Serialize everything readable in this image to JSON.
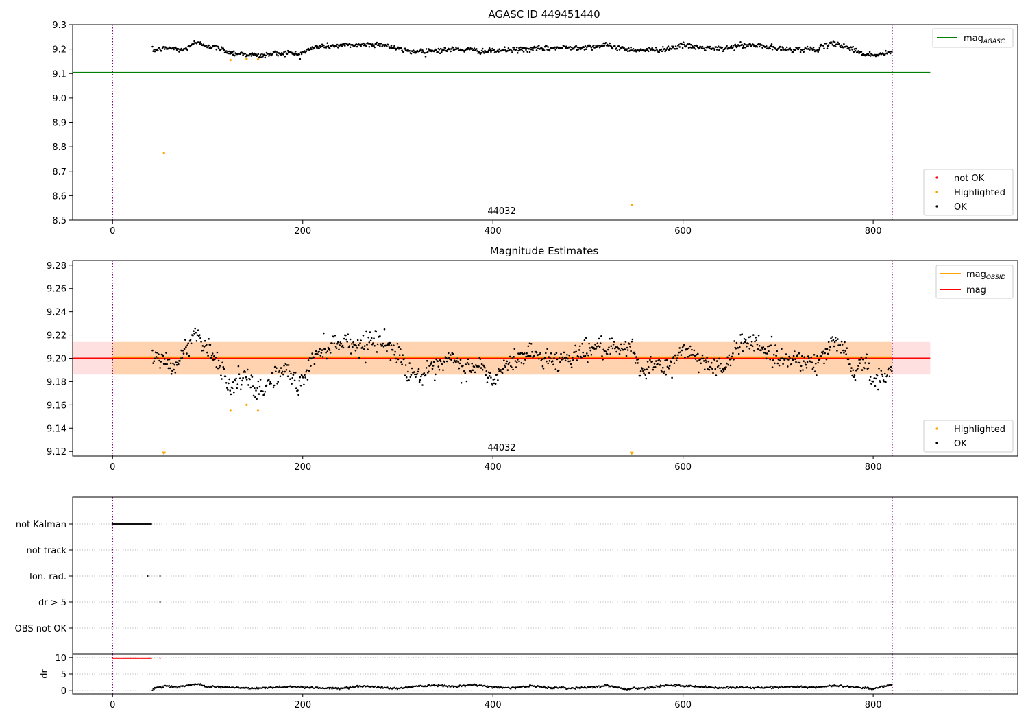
{
  "chart_data": [
    {
      "id": "agasc",
      "type": "scatter",
      "title": "AGASC ID 449451440",
      "xlim": [
        -42,
        952
      ],
      "ylim": [
        8.5,
        9.3
      ],
      "xticks": [
        0,
        200,
        400,
        600,
        800
      ],
      "yticks": [
        8.5,
        8.6,
        8.7,
        8.8,
        8.9,
        9.0,
        9.1,
        9.2,
        9.3
      ],
      "yticklabels": [
        "8.5",
        "8.6",
        "8.7",
        "8.8",
        "8.9",
        "9.0",
        "9.1",
        "9.2",
        "9.3"
      ],
      "obsid_label": {
        "text": "44032",
        "x": 410
      },
      "obs_boundaries": [
        0,
        820
      ],
      "mag_agasc": {
        "value": 9.104,
        "x_range": [
          -42,
          860
        ],
        "color": "#008000"
      },
      "ok_series": {
        "name": "OK",
        "color": "#000000",
        "x_range": [
          42,
          820
        ],
        "anchors": [
          [
            42,
            9.195
          ],
          [
            60,
            9.205
          ],
          [
            75,
            9.195
          ],
          [
            85,
            9.225
          ],
          [
            95,
            9.22
          ],
          [
            110,
            9.205
          ],
          [
            125,
            9.185
          ],
          [
            140,
            9.18
          ],
          [
            155,
            9.172
          ],
          [
            170,
            9.182
          ],
          [
            185,
            9.185
          ],
          [
            195,
            9.178
          ],
          [
            205,
            9.195
          ],
          [
            215,
            9.21
          ],
          [
            240,
            9.215
          ],
          [
            260,
            9.218
          ],
          [
            285,
            9.22
          ],
          [
            300,
            9.2
          ],
          [
            315,
            9.19
          ],
          [
            340,
            9.195
          ],
          [
            360,
            9.2
          ],
          [
            380,
            9.195
          ],
          [
            395,
            9.19
          ],
          [
            410,
            9.195
          ],
          [
            440,
            9.2
          ],
          [
            470,
            9.205
          ],
          [
            500,
            9.21
          ],
          [
            520,
            9.215
          ],
          [
            540,
            9.2
          ],
          [
            560,
            9.195
          ],
          [
            580,
            9.2
          ],
          [
            600,
            9.215
          ],
          [
            620,
            9.205
          ],
          [
            640,
            9.2
          ],
          [
            660,
            9.215
          ],
          [
            680,
            9.215
          ],
          [
            700,
            9.2
          ],
          [
            720,
            9.2
          ],
          [
            740,
            9.2
          ],
          [
            760,
            9.225
          ],
          [
            775,
            9.205
          ],
          [
            790,
            9.18
          ],
          [
            805,
            9.175
          ],
          [
            820,
            9.19
          ]
        ],
        "scatter": 0.01
      },
      "highlighted": {
        "name": "Highlighted",
        "color": "#ffa500",
        "points": [
          [
            54,
            8.775
          ],
          [
            124,
            9.155
          ],
          [
            141,
            9.16
          ],
          [
            153,
            9.158
          ],
          [
            546,
            8.562
          ]
        ]
      },
      "not_ok": {
        "name": "not OK",
        "color": "#ff0000",
        "points": []
      },
      "legend_upper": [
        "mag_AGASC"
      ],
      "legend_lower": [
        "not OK",
        "Highlighted",
        "OK"
      ]
    },
    {
      "id": "estimates",
      "type": "scatter",
      "title": "Magnitude Estimates",
      "xlim": [
        -42,
        952
      ],
      "ylim": [
        9.116,
        9.284
      ],
      "xticks": [
        0,
        200,
        400,
        600,
        800
      ],
      "yticks": [
        9.12,
        9.14,
        9.16,
        9.18,
        9.2,
        9.22,
        9.24,
        9.26,
        9.28
      ],
      "yticklabels": [
        "9.12",
        "9.14",
        "9.16",
        "9.18",
        "9.20",
        "9.22",
        "9.24",
        "9.26",
        "9.28"
      ],
      "obsid_label": {
        "text": "44032",
        "x": 410
      },
      "obs_boundaries": [
        0,
        820
      ],
      "mag": {
        "value": 9.2,
        "band": [
          9.186,
          9.214
        ],
        "x_range": [
          -42,
          860
        ],
        "color": "#ff0000"
      },
      "mag_obsid": {
        "value": 9.201,
        "band": [
          9.186,
          9.214
        ],
        "x_range": [
          0,
          820
        ],
        "color": "#ffa500"
      },
      "ok_series": {
        "name": "OK",
        "color": "#000000",
        "x_range": [
          42,
          820
        ],
        "anchors": [
          [
            42,
            9.198
          ],
          [
            55,
            9.2
          ],
          [
            65,
            9.19
          ],
          [
            75,
            9.205
          ],
          [
            85,
            9.222
          ],
          [
            95,
            9.215
          ],
          [
            105,
            9.205
          ],
          [
            115,
            9.19
          ],
          [
            125,
            9.175
          ],
          [
            140,
            9.185
          ],
          [
            150,
            9.17
          ],
          [
            160,
            9.175
          ],
          [
            170,
            9.185
          ],
          [
            185,
            9.19
          ],
          [
            195,
            9.175
          ],
          [
            205,
            9.19
          ],
          [
            215,
            9.205
          ],
          [
            230,
            9.212
          ],
          [
            245,
            9.215
          ],
          [
            260,
            9.21
          ],
          [
            275,
            9.218
          ],
          [
            290,
            9.21
          ],
          [
            300,
            9.205
          ],
          [
            310,
            9.19
          ],
          [
            325,
            9.185
          ],
          [
            340,
            9.19
          ],
          [
            355,
            9.2
          ],
          [
            370,
            9.19
          ],
          [
            385,
            9.195
          ],
          [
            400,
            9.18
          ],
          [
            410,
            9.19
          ],
          [
            425,
            9.2
          ],
          [
            440,
            9.205
          ],
          [
            455,
            9.2
          ],
          [
            470,
            9.198
          ],
          [
            490,
            9.205
          ],
          [
            510,
            9.21
          ],
          [
            530,
            9.205
          ],
          [
            545,
            9.21
          ],
          [
            555,
            9.19
          ],
          [
            570,
            9.195
          ],
          [
            585,
            9.19
          ],
          [
            600,
            9.21
          ],
          [
            615,
            9.2
          ],
          [
            630,
            9.195
          ],
          [
            645,
            9.19
          ],
          [
            660,
            9.215
          ],
          [
            675,
            9.215
          ],
          [
            690,
            9.205
          ],
          [
            700,
            9.2
          ],
          [
            720,
            9.2
          ],
          [
            740,
            9.195
          ],
          [
            760,
            9.215
          ],
          [
            770,
            9.21
          ],
          [
            780,
            9.185
          ],
          [
            790,
            9.2
          ],
          [
            800,
            9.18
          ],
          [
            810,
            9.182
          ],
          [
            820,
            9.19
          ]
        ],
        "scatter": 0.008
      },
      "highlighted": {
        "name": "Highlighted",
        "color": "#ffa500",
        "points": [
          [
            124,
            9.155
          ],
          [
            141,
            9.16
          ],
          [
            153,
            9.155
          ]
        ]
      },
      "highlighted_offscale": [
        [
          54,
          9.118
        ],
        [
          546,
          9.118
        ]
      ],
      "legend_upper": [
        "mag_OBSID",
        "mag"
      ],
      "legend_lower": [
        "Highlighted",
        "OK"
      ]
    },
    {
      "id": "flags",
      "type": "scatter",
      "xlim": [
        -42,
        952
      ],
      "categories": [
        "not Kalman",
        "not track",
        "Ion. rad.",
        "dr > 5",
        "OBS not OK"
      ],
      "obs_boundaries": [
        0,
        820
      ],
      "flag_points": {
        "not Kalman": {
          "x_range": [
            0,
            41
          ],
          "step": 0.8
        },
        "Ion. rad.": {
          "points": [
            37,
            50
          ]
        },
        "dr > 5": {
          "points": [
            50
          ]
        }
      },
      "dr_axis": {
        "ylabel": "dr",
        "yticks": [
          0,
          5,
          10
        ],
        "ylim": [
          -1,
          11
        ],
        "not_ok_series": {
          "color": "#ff0000",
          "x_range": [
            0,
            41
          ],
          "value": 9.8,
          "extra": [
            [
              50,
              9.8
            ]
          ]
        },
        "ok_series": {
          "color": "#000000",
          "x_range": [
            42,
            820
          ],
          "anchors": [
            [
              42,
              0.5
            ],
            [
              55,
              1.5
            ],
            [
              65,
              1.0
            ],
            [
              75,
              1.3
            ],
            [
              90,
              2.0
            ],
            [
              100,
              1.2
            ],
            [
              120,
              1.0
            ],
            [
              150,
              0.6
            ],
            [
              170,
              1.0
            ],
            [
              190,
              1.2
            ],
            [
              210,
              0.9
            ],
            [
              240,
              0.6
            ],
            [
              260,
              1.4
            ],
            [
              280,
              1.0
            ],
            [
              300,
              0.6
            ],
            [
              320,
              1.4
            ],
            [
              340,
              1.6
            ],
            [
              360,
              1.3
            ],
            [
              380,
              1.7
            ],
            [
              400,
              1.1
            ],
            [
              420,
              0.8
            ],
            [
              440,
              1.4
            ],
            [
              460,
              0.9
            ],
            [
              480,
              0.7
            ],
            [
              500,
              1.0
            ],
            [
              520,
              1.5
            ],
            [
              540,
              0.5
            ],
            [
              560,
              0.8
            ],
            [
              580,
              1.6
            ],
            [
              600,
              1.4
            ],
            [
              620,
              1.1
            ],
            [
              640,
              0.8
            ],
            [
              660,
              1.0
            ],
            [
              680,
              0.8
            ],
            [
              700,
              1.0
            ],
            [
              720,
              1.2
            ],
            [
              740,
              0.9
            ],
            [
              760,
              1.5
            ],
            [
              780,
              1.1
            ],
            [
              800,
              0.6
            ],
            [
              820,
              1.8
            ]
          ],
          "scatter": 0.3
        }
      }
    }
  ]
}
